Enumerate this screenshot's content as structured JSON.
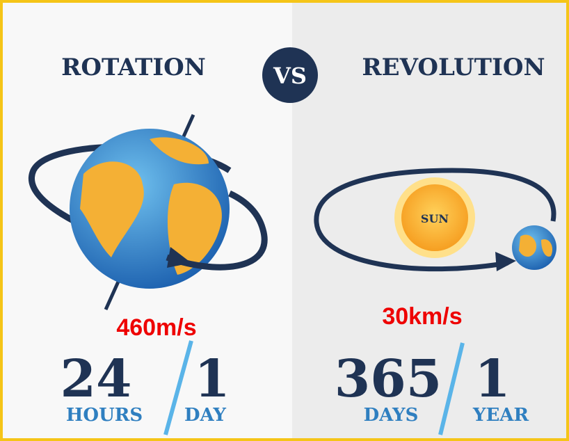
{
  "header": {
    "left": "ROTATION",
    "vs": "VS",
    "right": "REVOLUTION"
  },
  "rotation": {
    "speed": "460m/s",
    "period": {
      "value": "24",
      "unit": "HOURS"
    },
    "equals": {
      "value": "1",
      "unit": "DAY"
    }
  },
  "revolution": {
    "sun": "SUN",
    "speed": "30km/s",
    "period": {
      "value": "365",
      "unit": "DAYS"
    },
    "equals": {
      "value": "1",
      "unit": "YEAR"
    }
  }
}
